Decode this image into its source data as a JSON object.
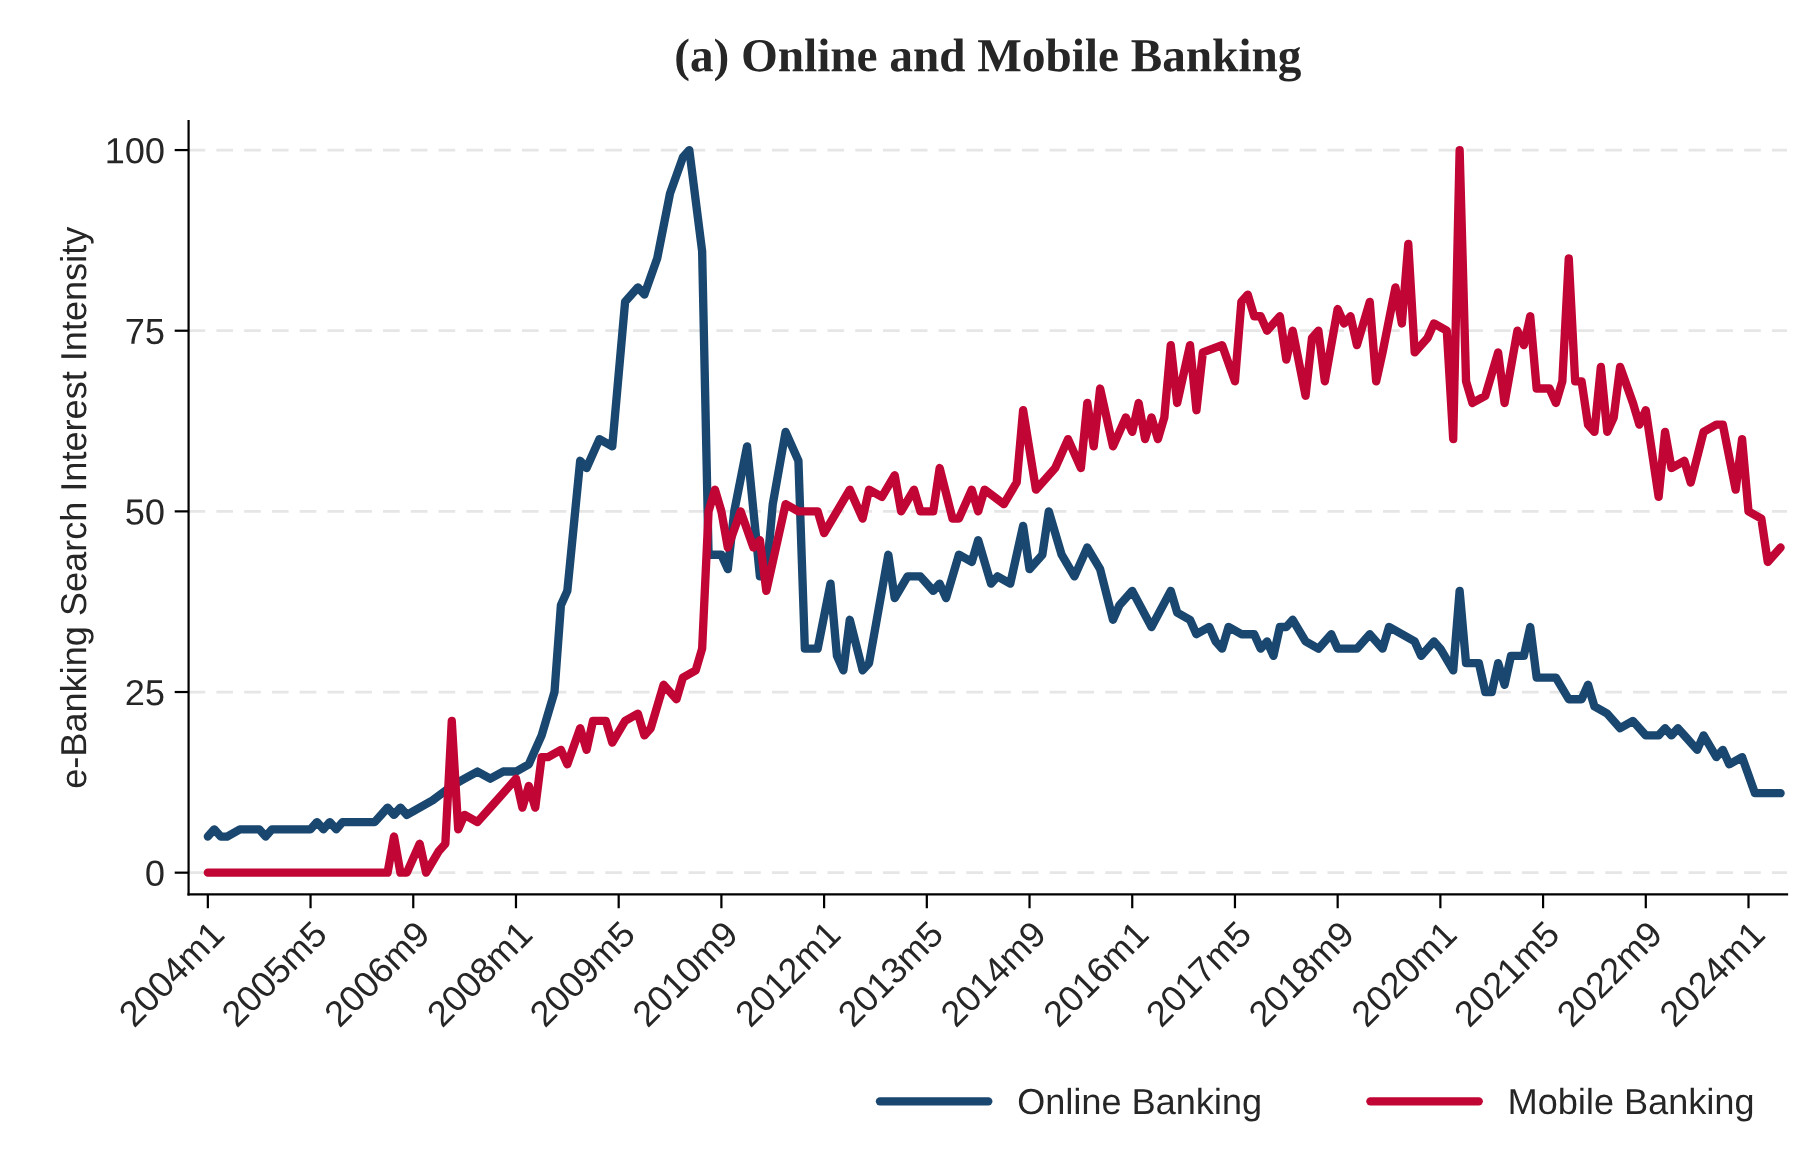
{
  "chart_data": {
    "type": "line",
    "title": "(a) Online and Mobile Banking",
    "ylabel": "e-Banking Search Interest Intensity",
    "xlim": [
      "2003-10",
      "2024-07"
    ],
    "ylim": [
      -3,
      104
    ],
    "yticks": [
      0,
      25,
      50,
      75,
      100
    ],
    "xticks": [
      {
        "value": "2004-01",
        "label": "2004m1"
      },
      {
        "value": "2005-05",
        "label": "2005m5"
      },
      {
        "value": "2006-09",
        "label": "2006m9"
      },
      {
        "value": "2008-01",
        "label": "2008m1"
      },
      {
        "value": "2009-05",
        "label": "2009m5"
      },
      {
        "value": "2010-09",
        "label": "2010m9"
      },
      {
        "value": "2012-01",
        "label": "2012m1"
      },
      {
        "value": "2013-05",
        "label": "2013m5"
      },
      {
        "value": "2014-09",
        "label": "2014m9"
      },
      {
        "value": "2016-01",
        "label": "2016m1"
      },
      {
        "value": "2017-05",
        "label": "2017m5"
      },
      {
        "value": "2018-09",
        "label": "2018m9"
      },
      {
        "value": "2020-01",
        "label": "2020m1"
      },
      {
        "value": "2021-05",
        "label": "2021m5"
      },
      {
        "value": "2022-09",
        "label": "2022m9"
      },
      {
        "value": "2024-01",
        "label": "2024m1"
      }
    ],
    "grid": "y",
    "legend": "bottom right",
    "marker": "none",
    "line_style": "solid",
    "series": [
      {
        "name": "Online Banking",
        "color": "#1a476f",
        "x": [
          "2004-01",
          "2004-02",
          "2004-03",
          "2004-04",
          "2004-06",
          "2004-09",
          "2004-10",
          "2004-11",
          "2005-05",
          "2005-06",
          "2005-07",
          "2005-08",
          "2005-09",
          "2005-10",
          "2005-12",
          "2006-03",
          "2006-04",
          "2006-05",
          "2006-06",
          "2006-07",
          "2006-08",
          "2006-10",
          "2006-12",
          "2007-03",
          "2007-05",
          "2007-07",
          "2007-09",
          "2007-11",
          "2008-01",
          "2008-03",
          "2008-05",
          "2008-07",
          "2008-08",
          "2008-09",
          "2008-11",
          "2008-12",
          "2009-02",
          "2009-04",
          "2009-06",
          "2009-08",
          "2009-09",
          "2009-11",
          "2010-01",
          "2010-03",
          "2010-04",
          "2010-06",
          "2010-07",
          "2010-09",
          "2010-10",
          "2010-11",
          "2011-01",
          "2011-03",
          "2011-04",
          "2011-05",
          "2011-07",
          "2011-09",
          "2011-10",
          "2011-12",
          "2012-02",
          "2012-03",
          "2012-04",
          "2012-05",
          "2012-07",
          "2012-08",
          "2012-11",
          "2012-12",
          "2013-02",
          "2013-04",
          "2013-05",
          "2013-06",
          "2013-07",
          "2013-08",
          "2013-10",
          "2013-12",
          "2014-01",
          "2014-03",
          "2014-04",
          "2014-06",
          "2014-08",
          "2014-09",
          "2014-11",
          "2014-12",
          "2015-02",
          "2015-04",
          "2015-06",
          "2015-08",
          "2015-10",
          "2015-11",
          "2016-01",
          "2016-04",
          "2016-07",
          "2016-08",
          "2016-10",
          "2016-11",
          "2017-01",
          "2017-02",
          "2017-03",
          "2017-04",
          "2017-06",
          "2017-08",
          "2017-09",
          "2017-10",
          "2017-11",
          "2017-12",
          "2018-01",
          "2018-02",
          "2018-04",
          "2018-06",
          "2018-07",
          "2018-08",
          "2018-09",
          "2018-12",
          "2019-02",
          "2019-04",
          "2019-05",
          "2019-07",
          "2019-09",
          "2019-10",
          "2019-12",
          "2020-01",
          "2020-03",
          "2020-04",
          "2020-05",
          "2020-07",
          "2020-08",
          "2020-09",
          "2020-10",
          "2020-11",
          "2020-12",
          "2021-02",
          "2021-03",
          "2021-04",
          "2021-06",
          "2021-07",
          "2021-09",
          "2021-11",
          "2021-12",
          "2022-01",
          "2022-03",
          "2022-05",
          "2022-07",
          "2022-09",
          "2022-11",
          "2022-12",
          "2023-01",
          "2023-02",
          "2023-03",
          "2023-05",
          "2023-06",
          "2023-08",
          "2023-09",
          "2023-10",
          "2023-12",
          "2024-02",
          "2024-06"
        ],
        "values": [
          5,
          6,
          5,
          5,
          6,
          6,
          5,
          6,
          6,
          7,
          6,
          7,
          6,
          7,
          7,
          7,
          8,
          9,
          8,
          9,
          8,
          9,
          10,
          12,
          13,
          14,
          13,
          14,
          14,
          15,
          19,
          25,
          37,
          39,
          57,
          56,
          60,
          59,
          79,
          81,
          80,
          85,
          94,
          99,
          100,
          86,
          44,
          44,
          42,
          50,
          59,
          41,
          41,
          51,
          61,
          57,
          31,
          31,
          40,
          30,
          28,
          35,
          28,
          29,
          44,
          38,
          41,
          41,
          40,
          39,
          40,
          38,
          44,
          43,
          46,
          40,
          41,
          40,
          48,
          42,
          44,
          50,
          44,
          41,
          45,
          42,
          35,
          37,
          39,
          34,
          39,
          36,
          35,
          33,
          34,
          32,
          31,
          34,
          33,
          33,
          31,
          32,
          30,
          34,
          34,
          35,
          32,
          31,
          32,
          33,
          31,
          31,
          33,
          31,
          34,
          33,
          32,
          30,
          32,
          31,
          28,
          39,
          29,
          29,
          25,
          25,
          29,
          26,
          30,
          30,
          34,
          27,
          27,
          27,
          24,
          24,
          26,
          23,
          22,
          20,
          21,
          19,
          19,
          20,
          19,
          20,
          19,
          17,
          19,
          16,
          17,
          15,
          16,
          11,
          11
        ]
      },
      {
        "name": "Mobile Banking",
        "color": "#c10534",
        "x": [
          "2004-01",
          "2006-05",
          "2006-06",
          "2006-07",
          "2006-08",
          "2006-10",
          "2006-11",
          "2007-01",
          "2007-02",
          "2007-03",
          "2007-04",
          "2007-05",
          "2007-07",
          "2007-09",
          "2007-11",
          "2008-01",
          "2008-02",
          "2008-03",
          "2008-04",
          "2008-05",
          "2008-06",
          "2008-08",
          "2008-09",
          "2008-11",
          "2008-12",
          "2009-01",
          "2009-03",
          "2009-04",
          "2009-06",
          "2009-08",
          "2009-09",
          "2009-10",
          "2009-12",
          "2010-02",
          "2010-03",
          "2010-05",
          "2010-06",
          "2010-07",
          "2010-08",
          "2010-09",
          "2010-10",
          "2010-12",
          "2011-02",
          "2011-03",
          "2011-04",
          "2011-07",
          "2011-09",
          "2011-11",
          "2011-12",
          "2012-01",
          "2012-03",
          "2012-05",
          "2012-07",
          "2012-08",
          "2012-10",
          "2012-12",
          "2013-01",
          "2013-03",
          "2013-04",
          "2013-06",
          "2013-07",
          "2013-09",
          "2013-10",
          "2013-12",
          "2014-01",
          "2014-02",
          "2014-05",
          "2014-07",
          "2014-08",
          "2014-10",
          "2015-01",
          "2015-03",
          "2015-05",
          "2015-06",
          "2015-07",
          "2015-08",
          "2015-10",
          "2015-12",
          "2016-01",
          "2016-02",
          "2016-03",
          "2016-04",
          "2016-05",
          "2016-06",
          "2016-07",
          "2016-08",
          "2016-10",
          "2016-11",
          "2016-12",
          "2017-03",
          "2017-05",
          "2017-06",
          "2017-07",
          "2017-08",
          "2017-09",
          "2017-10",
          "2017-12",
          "2018-01",
          "2018-02",
          "2018-04",
          "2018-05",
          "2018-06",
          "2018-07",
          "2018-09",
          "2018-10",
          "2018-11",
          "2018-12",
          "2019-02",
          "2019-03",
          "2019-04",
          "2019-06",
          "2019-07",
          "2019-08",
          "2019-09",
          "2019-10",
          "2019-11",
          "2019-12",
          "2020-02",
          "2020-03",
          "2020-04",
          "2020-05",
          "2020-06",
          "2020-08",
          "2020-10",
          "2020-11",
          "2021-01",
          "2021-02",
          "2021-03",
          "2021-04",
          "2021-06",
          "2021-07",
          "2021-08",
          "2021-09",
          "2021-10",
          "2021-11",
          "2021-12",
          "2022-01",
          "2022-02",
          "2022-03",
          "2022-04",
          "2022-05",
          "2022-07",
          "2022-08",
          "2022-09",
          "2022-11",
          "2022-12",
          "2023-01",
          "2023-03",
          "2023-04",
          "2023-06",
          "2023-08",
          "2023-09",
          "2023-11",
          "2023-12",
          "2024-01",
          "2024-03",
          "2024-04",
          "2024-06"
        ],
        "values": [
          0,
          0,
          5,
          0,
          0,
          4,
          0,
          3,
          4,
          21,
          6,
          8,
          7,
          9,
          11,
          13,
          9,
          12,
          9,
          16,
          16,
          17,
          15,
          20,
          17,
          21,
          21,
          18,
          21,
          22,
          19,
          20,
          26,
          24,
          27,
          28,
          31,
          50,
          53,
          50,
          45,
          50,
          45,
          46,
          39,
          51,
          50,
          50,
          50,
          47,
          50,
          53,
          49,
          53,
          52,
          55,
          50,
          53,
          50,
          50,
          56,
          49,
          49,
          53,
          50,
          53,
          51,
          54,
          64,
          53,
          56,
          60,
          56,
          65,
          59,
          67,
          59,
          63,
          61,
          65,
          60,
          63,
          60,
          63,
          73,
          65,
          73,
          64,
          72,
          73,
          68,
          79,
          80,
          77,
          77,
          75,
          77,
          71,
          75,
          66,
          74,
          75,
          68,
          78,
          76,
          77,
          73,
          79,
          68,
          72,
          81,
          76,
          87,
          72,
          73,
          74,
          76,
          75,
          60,
          100,
          68,
          65,
          66,
          72,
          65,
          75,
          73,
          77,
          67,
          67,
          65,
          68,
          85,
          68,
          68,
          62,
          61,
          70,
          61,
          63,
          70,
          65,
          62,
          64,
          52,
          61,
          56,
          57,
          54,
          61,
          62,
          62,
          53,
          60,
          50,
          49,
          43,
          45
        ]
      }
    ]
  }
}
